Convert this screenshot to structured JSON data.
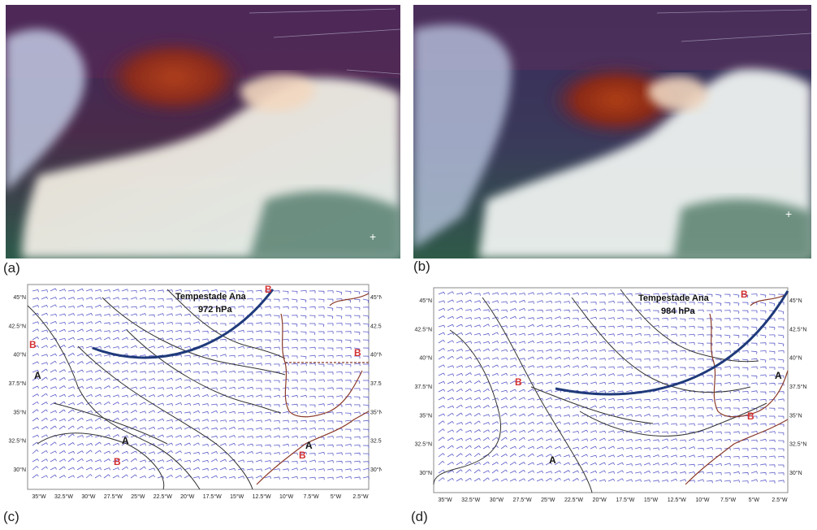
{
  "panels": {
    "a": {
      "label": "(a)"
    },
    "b": {
      "label": "(b)"
    },
    "c": {
      "label": "(c)",
      "storm_name": "Tempestade Ana",
      "storm_pressure": "972  hPa",
      "lat_ticks": [
        "45°N",
        "42.5°N",
        "40°N",
        "37.5°N",
        "35°N",
        "32.5°N",
        "30°N"
      ],
      "lon_ticks": [
        "35°W",
        "32.5°W",
        "30°W",
        "27.5°W",
        "25°W",
        "22.5°W",
        "20°W",
        "17.5°W",
        "15°W",
        "12.5°W",
        "10°W",
        "7.5°W",
        "5°W",
        "2.5°W"
      ],
      "high_label": "A",
      "low_label": "B"
    },
    "d": {
      "label": "(d)",
      "storm_name": "Tempestade Ana",
      "storm_pressure": "984  hPa",
      "lat_ticks": [
        "45°N",
        "42.5°N",
        "40°N",
        "37.5°N",
        "35°N",
        "32.5°N",
        "30°N"
      ],
      "lon_ticks": [
        "35°W",
        "32.5°W",
        "30°W",
        "27.5°W",
        "25°W",
        "22.5°W",
        "20°W",
        "17.5°W",
        "15°W",
        "12.5°W",
        "10°W",
        "7.5°W",
        "5°W",
        "2.5°W"
      ],
      "high_label": "A",
      "low_label": "B"
    }
  },
  "colors": {
    "wind_barbs": "#5a5ac8",
    "isobars": "#333333",
    "front_line": "#1f3a7a",
    "coast": "#8b3a2a",
    "low_marker": "#d43030",
    "ocean_sat": "#1f4a6a",
    "dry_air": "#8a2a1a"
  }
}
